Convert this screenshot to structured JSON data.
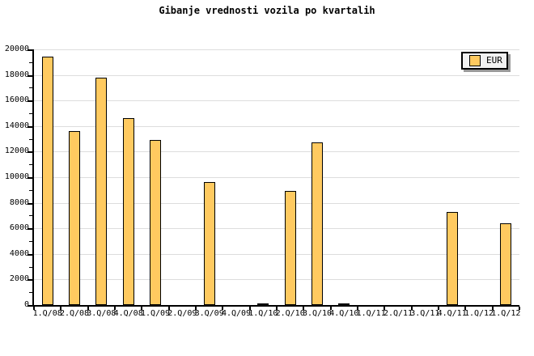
{
  "title": "Gibanje vrednosti vozila po kvartalih",
  "legend": {
    "label": "EUR"
  },
  "colors": {
    "background": "#FFFFFF",
    "bar_fill": "#FFCA60",
    "bar_border": "#000000",
    "grid": "#DDDDDD",
    "axis": "#000000",
    "text": "#000000",
    "legend_bg": "#F2F2F2",
    "legend_border": "#000000",
    "legend_shadow": "#999999"
  },
  "chart_data": {
    "type": "bar",
    "title": "Gibanje vrednosti vozila po kvartalih",
    "xlabel": "",
    "ylabel": "",
    "categories": [
      "1.Q/08",
      "2.Q/08",
      "3.Q/08",
      "4.Q/08",
      "1.Q/09",
      "2.Q/09",
      "3.Q/09",
      "4.Q/09",
      "1.Q/10",
      "2.Q/10",
      "3.Q/10",
      "4.Q/10",
      "1.Q/11",
      "2.Q/11",
      "3.Q/11",
      "4.Q/11",
      "1.Q/12",
      "1.Q/12"
    ],
    "series": [
      {
        "name": "EUR",
        "values": [
          19400,
          13600,
          17800,
          14600,
          12900,
          0,
          9600,
          0,
          150,
          8900,
          12700,
          150,
          0,
          0,
          0,
          7250,
          0,
          6400
        ]
      }
    ],
    "ylim": [
      0,
      20000
    ],
    "yticks": [
      0,
      2000,
      4000,
      6000,
      8000,
      10000,
      12000,
      14000,
      16000,
      18000,
      20000
    ],
    "ytick_step": 2000,
    "yminor_tick_step": 1000,
    "grid": "horizontal major gridlines only",
    "legend_position": "top-right",
    "legend_entries": [
      "EUR"
    ]
  }
}
